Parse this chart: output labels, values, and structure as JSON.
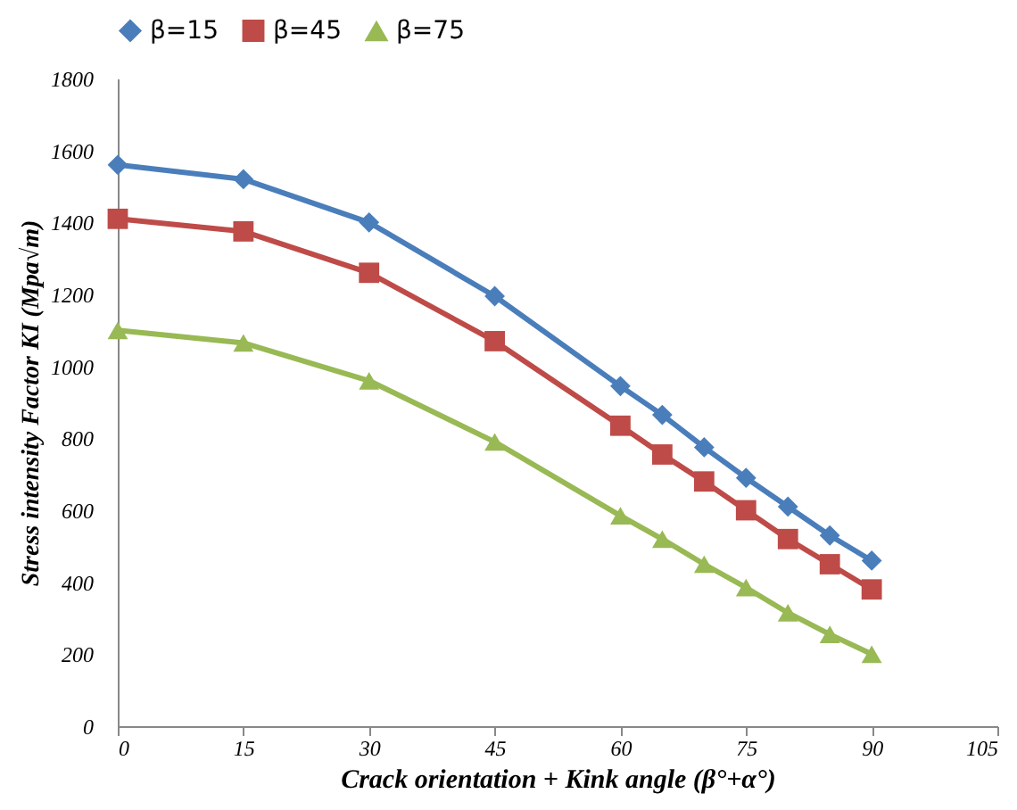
{
  "chart_data": {
    "type": "line",
    "xlabel": "Crack orientation + Kink angle (β°+α°)",
    "ylabel": "Stress intensity Factor KI (Mpa√m)",
    "x": [
      0,
      15,
      30,
      45,
      60,
      65,
      70,
      75,
      80,
      85,
      90
    ],
    "series": [
      {
        "name": "β=15",
        "color": "#4a7ebb",
        "marker": "diamond",
        "values": [
          1560,
          1520,
          1400,
          1195,
          945,
          865,
          775,
          690,
          610,
          530,
          460
        ]
      },
      {
        "name": "β=45",
        "color": "#be4b48",
        "marker": "square",
        "values": [
          1410,
          1375,
          1260,
          1070,
          835,
          755,
          680,
          600,
          520,
          450,
          380
        ]
      },
      {
        "name": "β=75",
        "color": "#98b954",
        "marker": "triangle",
        "values": [
          1100,
          1065,
          960,
          790,
          585,
          520,
          450,
          385,
          315,
          255,
          200
        ]
      }
    ],
    "xlim": [
      0,
      105
    ],
    "xticks": [
      0,
      15,
      30,
      45,
      60,
      75,
      90,
      105
    ],
    "ylim": [
      0,
      1800
    ],
    "yticks": [
      0,
      200,
      400,
      600,
      800,
      1000,
      1200,
      1400,
      1600,
      1800
    ],
    "grid": false,
    "legend": "top"
  }
}
